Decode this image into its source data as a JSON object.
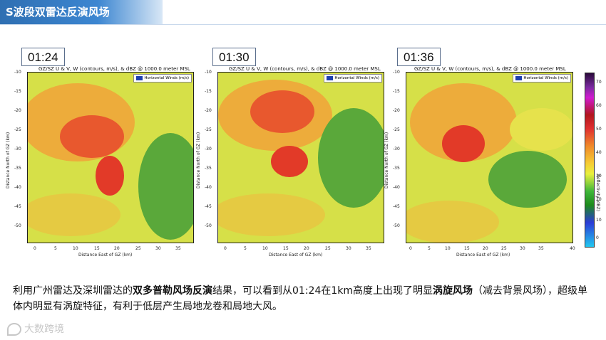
{
  "slide": {
    "title": "S波段双雷达反演风场",
    "caption_parts": [
      {
        "text": "利用广州雷达及深圳雷达的",
        "bold": false
      },
      {
        "text": "双多普勒风场反演",
        "bold": true
      },
      {
        "text": "结果，可以看到从01:24在1km高度上出现了明显",
        "bold": false
      },
      {
        "text": "涡旋风场",
        "bold": true
      },
      {
        "text": "（减去背景风场），超级单体内明显有涡旋特征，有利于低层产生局地龙卷和局地大风。",
        "bold": false
      }
    ],
    "watermark": "大数跨境"
  },
  "panels": [
    {
      "time": "01:24",
      "plot_title": "GZ/SZ U & V, W (contours, m/s), & dBZ @ 1000.0 meter MSL",
      "legend": "Horizontal Winds (m/s)",
      "x_ticks": [
        "0",
        "5",
        "10",
        "15",
        "20",
        "25",
        "30",
        "35"
      ],
      "y_ticks": [
        "-10",
        "-15",
        "-20",
        "-25",
        "-30",
        "-35",
        "-40",
        "-45",
        "-50"
      ],
      "xlabel": "Distance East of GZ (km)",
      "ylabel": "Distance North of GZ (km)"
    },
    {
      "time": "01:30",
      "plot_title": "GZ/SZ U & V, W (contours, m/s), & dBZ @ 1000.0 meter MSL",
      "legend": "Horizontal Winds (m/s)",
      "x_ticks": [
        "0",
        "5",
        "10",
        "15",
        "20",
        "25",
        "30",
        "35"
      ],
      "y_ticks": [
        "-10",
        "-15",
        "-20",
        "-25",
        "-30",
        "-35",
        "-40",
        "-45",
        "-50"
      ],
      "xlabel": "Distance East of GZ (km)",
      "ylabel": "Distance North of GZ (km)"
    },
    {
      "time": "01:36",
      "plot_title": "GZ/SZ U & V, W (contours, m/s), & dBZ @ 1000.0 meter MSL",
      "legend": "Horizontal Winds (m/s)",
      "x_ticks": [
        "0",
        "5",
        "10",
        "15",
        "20",
        "25",
        "30",
        "35",
        "40"
      ],
      "y_ticks": [
        "-10",
        "-15",
        "-20",
        "-25",
        "-30",
        "-35",
        "-40",
        "-45",
        "-50"
      ],
      "xlabel": "Distance East of GZ (km)",
      "ylabel": "Distance North of GZ (km)"
    }
  ],
  "colorbar": {
    "label": "Reflectivity (dBZ)",
    "ticks": [
      "70",
      "60",
      "50",
      "40",
      "30",
      "20",
      "10",
      "0"
    ]
  }
}
